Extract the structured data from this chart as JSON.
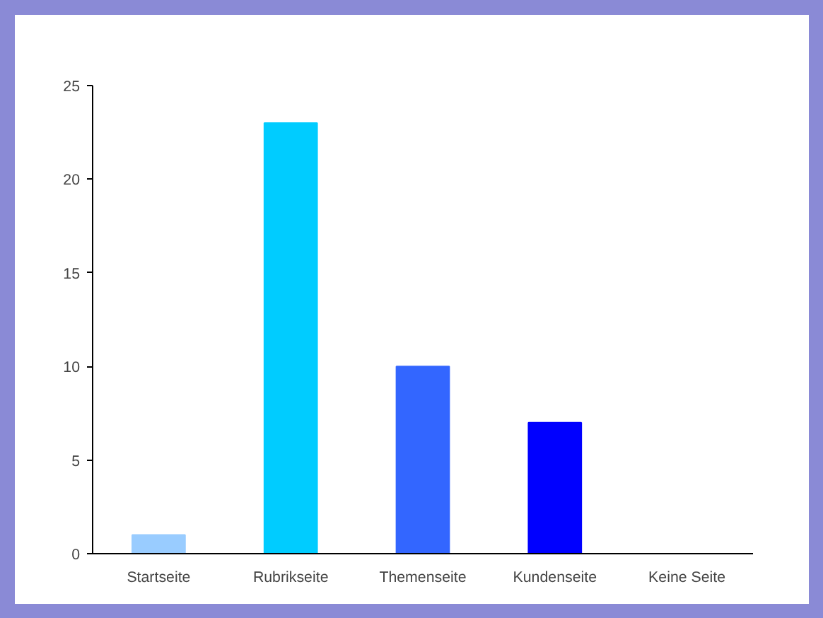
{
  "chart_data": {
    "type": "bar",
    "categories": [
      "Startseite",
      "Rubrikseite",
      "Themenseite",
      "Kundenseite",
      "Keine Seite"
    ],
    "values": [
      1,
      23,
      10,
      7,
      0
    ],
    "colors": [
      "#99ccff",
      "#00ccff",
      "#3366ff",
      "#0000ff",
      "#0000cc"
    ],
    "ylim": [
      0,
      25
    ],
    "yticks": [
      0,
      5,
      10,
      15,
      20,
      25
    ],
    "grid": false
  }
}
